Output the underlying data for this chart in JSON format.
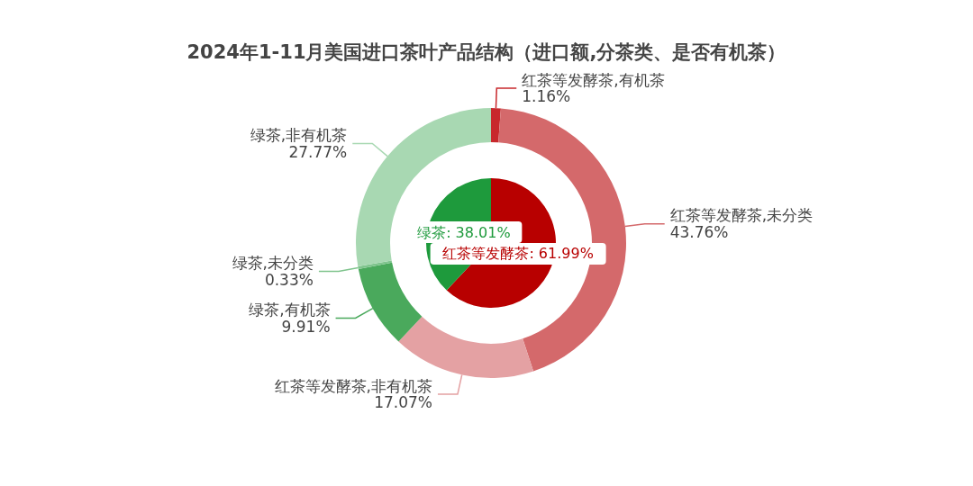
{
  "chart_data": [
    {
      "type": "pie",
      "title": "2024年1-11月美国进口茶叶产品结构（进口额,分茶类、是否有机茶）",
      "categories": [
        "红茶等发酵茶",
        "绿茶"
      ],
      "values": [
        61.99,
        38.01
      ],
      "colors": [
        "#b80000",
        "#1e9a3c"
      ],
      "value_labels": [
        "61.99%",
        "38.01%"
      ]
    },
    {
      "type": "donut",
      "categories": [
        "红茶等发酵茶,有机茶",
        "红茶等发酵茶,未分类",
        "红茶等发酵茶,非有机茶",
        "绿茶,有机茶",
        "绿茶,未分类",
        "绿茶,非有机茶"
      ],
      "values": [
        1.16,
        43.76,
        17.07,
        9.91,
        0.33,
        27.77
      ],
      "colors": [
        "#c8282c",
        "#d4696b",
        "#e4a1a3",
        "#4aa95c",
        "#7fc48d",
        "#a8d8b2"
      ],
      "value_labels": [
        "1.16%",
        "43.76%",
        "17.07%",
        "9.91%",
        "0.33%",
        "27.77%"
      ]
    }
  ]
}
